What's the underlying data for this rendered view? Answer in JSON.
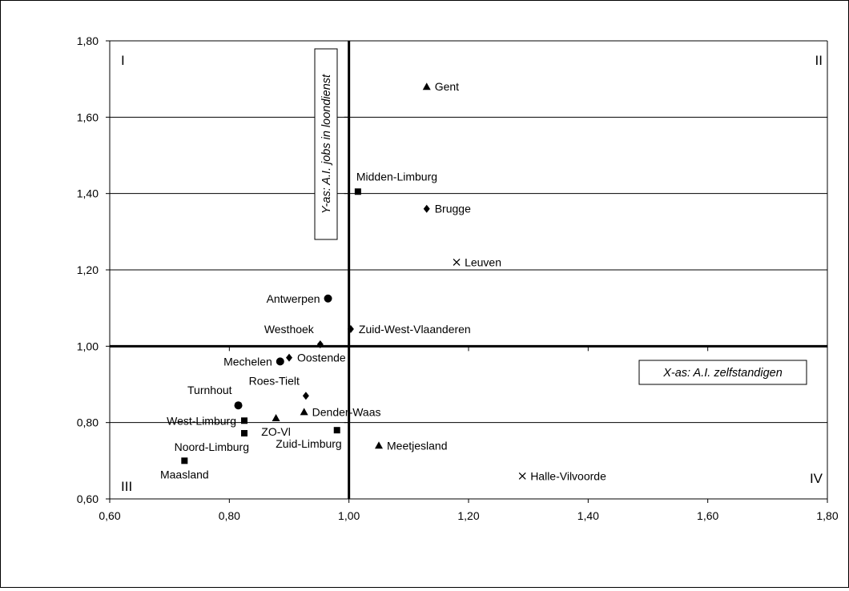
{
  "chart_data": {
    "type": "scatter",
    "title": "",
    "xlim": [
      0.6,
      1.8
    ],
    "ylim": [
      0.6,
      1.8
    ],
    "x_ticks": [
      "0,60",
      "0,80",
      "1,00",
      "1,20",
      "1,40",
      "1,60",
      "1,80"
    ],
    "y_ticks": [
      "0,60",
      "0,80",
      "1,00",
      "1,20",
      "1,40",
      "1,60",
      "1,80"
    ],
    "gridlines": "horizontal",
    "reference_lines": {
      "x": 1.0,
      "y": 1.0
    },
    "x_axis_title": "X-as: A.I. zelfstandigen",
    "y_axis_title": "Y-as: A.I. jobs in loondienst",
    "quadrant_labels": [
      "I",
      "II",
      "III",
      "IV"
    ],
    "points": [
      {
        "label": "Gent",
        "x": 1.13,
        "y": 1.68,
        "marker": "triangle",
        "label_pos": "right"
      },
      {
        "label": "Midden-Limburg",
        "x": 1.015,
        "y": 1.405,
        "marker": "square",
        "label_pos": "above-right"
      },
      {
        "label": "Brugge",
        "x": 1.13,
        "y": 1.36,
        "marker": "diamond",
        "label_pos": "right"
      },
      {
        "label": "Leuven",
        "x": 1.18,
        "y": 1.22,
        "marker": "cross",
        "label_pos": "right"
      },
      {
        "label": "Antwerpen",
        "x": 0.965,
        "y": 1.125,
        "marker": "circle",
        "label_pos": "left"
      },
      {
        "label": "Westhoek",
        "x": 0.952,
        "y": 1.005,
        "marker": "diamond",
        "label_pos": "above-left"
      },
      {
        "label": "Zuid-West-Vlaanderen",
        "x": 1.003,
        "y": 1.045,
        "marker": "diamond",
        "label_pos": "right"
      },
      {
        "label": "Oostende",
        "x": 0.9,
        "y": 0.97,
        "marker": "diamond",
        "label_pos": "right"
      },
      {
        "label": "Mechelen",
        "x": 0.885,
        "y": 0.96,
        "marker": "circle",
        "label_pos": "left"
      },
      {
        "label": "Roes-Tielt",
        "x": 0.928,
        "y": 0.87,
        "marker": "diamond",
        "label_pos": "above-left"
      },
      {
        "label": "Turnhout",
        "x": 0.815,
        "y": 0.845,
        "marker": "circle",
        "label_pos": "above-left"
      },
      {
        "label": "West-Limburg",
        "x": 0.825,
        "y": 0.805,
        "marker": "square",
        "label_pos": "left"
      },
      {
        "label": "ZO-Vl",
        "x": 0.878,
        "y": 0.812,
        "marker": "triangle",
        "label_pos": "below"
      },
      {
        "label": "Dender-Waas",
        "x": 0.925,
        "y": 0.828,
        "marker": "triangle",
        "label_pos": "right"
      },
      {
        "label": "Noord-Limburg",
        "x": 0.825,
        "y": 0.772,
        "marker": "square",
        "label_pos": "below-left"
      },
      {
        "label": "Zuid-Limburg",
        "x": 0.98,
        "y": 0.78,
        "marker": "square",
        "label_pos": "below-left"
      },
      {
        "label": "Meetjesland",
        "x": 1.05,
        "y": 0.74,
        "marker": "triangle",
        "label_pos": "right"
      },
      {
        "label": "Maasland",
        "x": 0.725,
        "y": 0.7,
        "marker": "square",
        "label_pos": "below"
      },
      {
        "label": "Halle-Vilvoorde",
        "x": 1.29,
        "y": 0.66,
        "marker": "cross",
        "label_pos": "right"
      }
    ]
  }
}
